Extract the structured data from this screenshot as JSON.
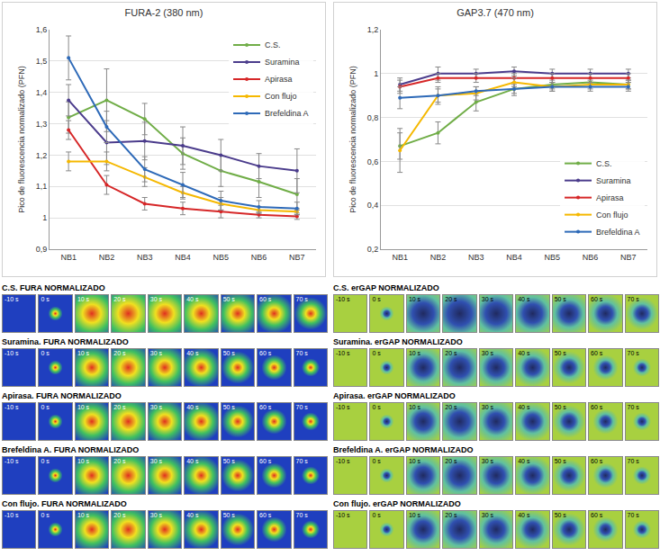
{
  "chart_data": [
    {
      "type": "line",
      "title": "FURA-2 (380 nm)",
      "y_label": "Pico de fluorescencia normalizado (PFN)",
      "categories": [
        "NB1",
        "NB2",
        "NB3",
        "NB4",
        "NB5",
        "NB6",
        "NB7"
      ],
      "series": [
        {
          "name": "C.S.",
          "color": "#70ad47",
          "values": [
            1.32,
            1.375,
            1.315,
            1.205,
            1.15,
            1.115,
            1.075
          ],
          "errors": [
            0.05,
            0.1,
            0.05,
            0.05,
            0.05,
            0.05,
            0.05
          ]
        },
        {
          "name": "Suramina",
          "color": "#4b3c8c",
          "values": [
            1.375,
            1.24,
            1.245,
            1.23,
            1.2,
            1.165,
            1.15
          ],
          "errors": [
            0.05,
            0.07,
            0.06,
            0.06,
            0.05,
            0.04,
            0.07
          ]
        },
        {
          "name": "Apirasa",
          "color": "#d62728",
          "values": [
            1.28,
            1.105,
            1.045,
            1.03,
            1.02,
            1.01,
            1.005
          ],
          "errors": [
            0.03,
            0.03,
            0.02,
            0.02,
            0.02,
            0.01,
            0.01
          ]
        },
        {
          "name": "Con flujo",
          "color": "#f5b800",
          "values": [
            1.18,
            1.18,
            1.13,
            1.08,
            1.045,
            1.025,
            1.02
          ],
          "errors": [
            0.03,
            0.03,
            0.03,
            0.02,
            0.02,
            0.01,
            0.01
          ]
        },
        {
          "name": "Brefeldina A",
          "color": "#2e6ab8",
          "values": [
            1.51,
            1.29,
            1.155,
            1.105,
            1.055,
            1.035,
            1.03
          ],
          "errors": [
            0.07,
            0.05,
            0.04,
            0.04,
            0.03,
            0.02,
            0.02
          ]
        }
      ],
      "ylim": [
        0.9,
        1.6
      ],
      "yticks": [
        {
          "value": 0.9,
          "label": "0,9"
        },
        1,
        {
          "value": 1.1,
          "label": "1,1"
        },
        {
          "value": 1.2,
          "label": "1,2"
        },
        {
          "value": 1.3,
          "label": "1,3"
        },
        {
          "value": 1.4,
          "label": "1,4"
        },
        {
          "value": 1.5,
          "label": "1,5"
        },
        {
          "value": 1.6,
          "label": "1,6"
        }
      ],
      "grid": true,
      "legend": "upper right",
      "marker": "circle"
    },
    {
      "type": "line",
      "title": "GAP3.7 (470 nm)",
      "y_label": "Pico de fluorescencia normalizado (PFN)",
      "categories": [
        "NB1",
        "NB2",
        "NB3",
        "NB4",
        "NB5",
        "NB6",
        "NB7"
      ],
      "series": [
        {
          "name": "C.S.",
          "color": "#70ad47",
          "values": [
            0.67,
            0.73,
            0.87,
            0.93,
            0.95,
            0.96,
            0.95
          ],
          "errors": [
            0.06,
            0.05,
            0.04,
            0.03,
            0.02,
            0.02,
            0.02
          ]
        },
        {
          "name": "Suramina",
          "color": "#4b3c8c",
          "values": [
            0.95,
            1.0,
            1.0,
            1.01,
            1.0,
            1.0,
            1.0
          ],
          "errors": [
            0.03,
            0.03,
            0.02,
            0.02,
            0.02,
            0.02,
            0.02
          ]
        },
        {
          "name": "Apirasa",
          "color": "#d62728",
          "values": [
            0.94,
            0.98,
            0.98,
            0.98,
            0.98,
            0.98,
            0.98
          ],
          "errors": [
            0.03,
            0.02,
            0.02,
            0.02,
            0.02,
            0.02,
            0.02
          ]
        },
        {
          "name": "Con flujo",
          "color": "#f5b800",
          "values": [
            0.65,
            0.9,
            0.91,
            0.96,
            0.94,
            0.95,
            0.95
          ],
          "errors": [
            0.1,
            0.04,
            0.03,
            0.02,
            0.02,
            0.02,
            0.02
          ]
        },
        {
          "name": "Brefeldina A",
          "color": "#2e6ab8",
          "values": [
            0.89,
            0.9,
            0.92,
            0.93,
            0.94,
            0.94,
            0.94
          ],
          "errors": [
            0.05,
            0.03,
            0.02,
            0.02,
            0.02,
            0.02,
            0.02
          ]
        }
      ],
      "ylim": [
        0.2,
        1.2
      ],
      "yticks": [
        {
          "value": 0.2,
          "label": "0,2"
        },
        {
          "value": 0.4,
          "label": "0,4"
        },
        {
          "value": 0.6,
          "label": "0,6"
        },
        {
          "value": 0.8,
          "label": "0,8"
        },
        1,
        {
          "value": 1.2,
          "label": "1,2"
        }
      ],
      "grid": true,
      "legend": "lower right",
      "marker": "circle"
    }
  ],
  "image_panels": {
    "times": [
      "-10 s",
      "0 s",
      "10 s",
      "20 s",
      "30 s",
      "40 s",
      "50 s",
      "60 s",
      "70 s"
    ],
    "left": [
      "C.S. FURA NORMALIZADO",
      "Suramina. FURA NORMALIZADO",
      "Apirasa. FURA NORMALIZADO",
      "Brefeldina A. FURA NORMALIZADO",
      "Con flujo. FURA NORMALIZADO"
    ],
    "right": [
      "C.S. erGAP NORMALIZADO",
      "Suramina. erGAP NORMALIZADO",
      "Apirasa. erGAP NORMALIZADO",
      "Brefeldina A. erGAP NORMALIZADO",
      "Con flujo. erGAP NORMALIZADO"
    ]
  }
}
